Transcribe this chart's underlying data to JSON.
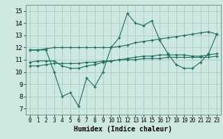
{
  "xlabel": "Humidex (Indice chaleur)",
  "bg_color": "#cce8e0",
  "grid_color": "#aaccc4",
  "line_color": "#1a6b60",
  "xlim": [
    -0.5,
    23.5
  ],
  "ylim": [
    6.5,
    15.5
  ],
  "xticks": [
    0,
    1,
    2,
    3,
    4,
    5,
    6,
    7,
    8,
    9,
    10,
    11,
    12,
    13,
    14,
    15,
    16,
    17,
    18,
    19,
    20,
    21,
    22,
    23
  ],
  "yticks": [
    7,
    8,
    9,
    10,
    11,
    12,
    13,
    14,
    15
  ],
  "line1": [
    11.8,
    11.8,
    11.8,
    10.0,
    8.0,
    8.3,
    7.2,
    9.5,
    8.8,
    10.0,
    12.0,
    12.8,
    14.8,
    14.0,
    13.8,
    14.2,
    12.6,
    11.5,
    10.6,
    10.3,
    10.3,
    10.8,
    11.5,
    13.1
  ],
  "line2": [
    11.8,
    11.8,
    11.9,
    12.0,
    12.0,
    12.0,
    12.0,
    12.0,
    12.0,
    12.0,
    12.0,
    12.1,
    12.2,
    12.4,
    12.5,
    12.6,
    12.7,
    12.8,
    12.9,
    13.0,
    13.1,
    13.2,
    13.3,
    13.1
  ],
  "line3": [
    10.8,
    10.9,
    10.9,
    10.9,
    10.5,
    10.3,
    10.3,
    10.5,
    10.6,
    10.8,
    10.9,
    11.0,
    11.1,
    11.2,
    11.3,
    11.3,
    11.4,
    11.4,
    11.4,
    11.4,
    11.3,
    11.3,
    11.4,
    11.5
  ],
  "line4": [
    10.5,
    10.5,
    10.6,
    10.7,
    10.7,
    10.7,
    10.7,
    10.8,
    10.8,
    10.9,
    10.9,
    11.0,
    11.0,
    11.0,
    11.1,
    11.1,
    11.1,
    11.2,
    11.2,
    11.2,
    11.2,
    11.2,
    11.2,
    11.3
  ]
}
